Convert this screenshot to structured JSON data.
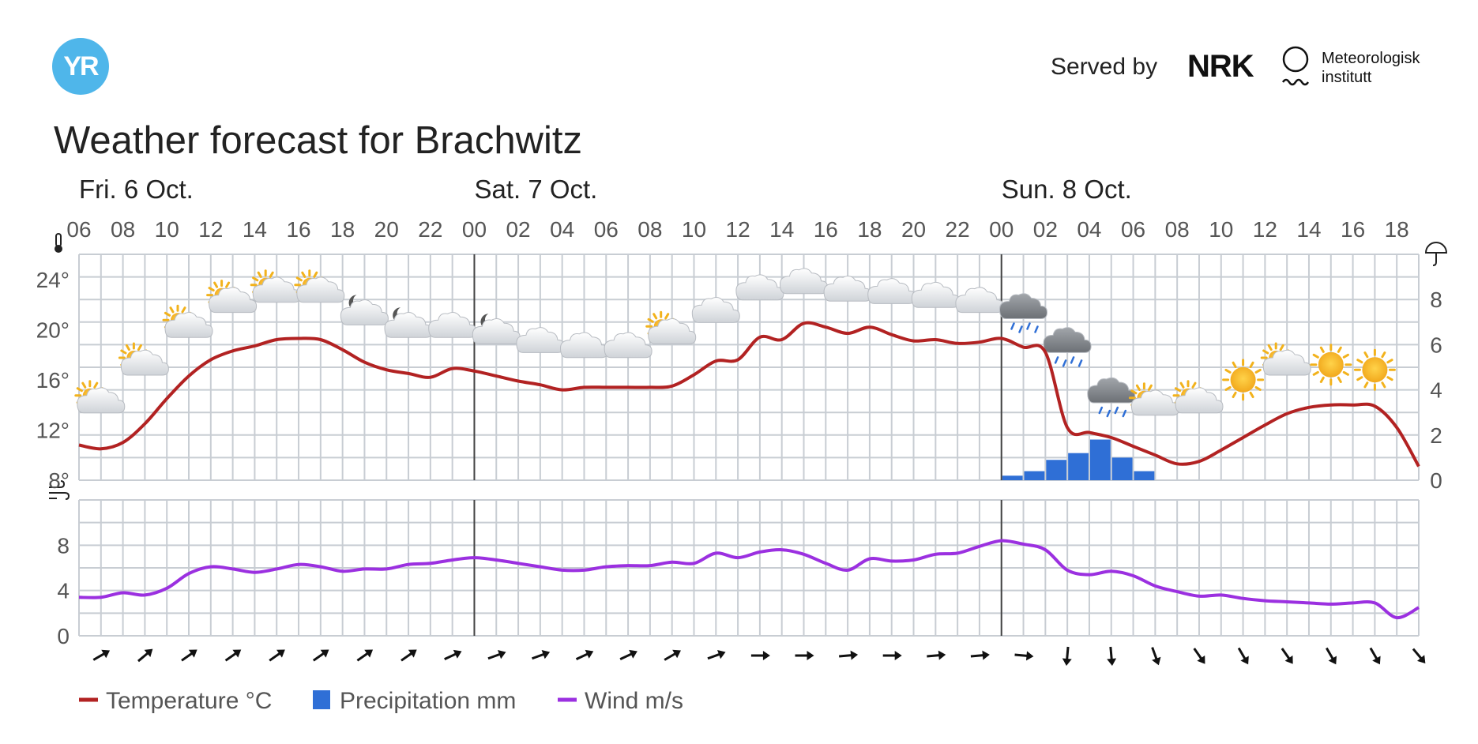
{
  "header": {
    "logo_text": "YR",
    "served_by": "Served by",
    "nrk": "NRK",
    "met_line1": "Meteorologisk",
    "met_line2": "institutt",
    "title": "Weather forecast for Brachwitz"
  },
  "chart_data": {
    "type": "line",
    "days": [
      {
        "label": "Fri. 6 Oct.",
        "hour": 6
      },
      {
        "label": "Sat. 7 Oct.",
        "hour": 24
      },
      {
        "label": "Sun. 8 Oct.",
        "hour": 48
      }
    ],
    "hour_labels": [
      "06",
      "08",
      "10",
      "12",
      "14",
      "16",
      "18",
      "20",
      "22",
      "00",
      "02",
      "04",
      "06",
      "08",
      "10",
      "12",
      "14",
      "16",
      "18",
      "20",
      "22",
      "00",
      "02",
      "04",
      "06",
      "08",
      "10",
      "12",
      "14",
      "16",
      "18"
    ],
    "x_range_hours": [
      6,
      67
    ],
    "temperature": {
      "name": "Temperature °C",
      "ylim": [
        8,
        26
      ],
      "yticks": [
        "8°",
        "12°",
        "16°",
        "20°",
        "24°"
      ],
      "x": [
        6,
        7,
        8,
        9,
        10,
        11,
        12,
        13,
        14,
        15,
        16,
        17,
        18,
        19,
        20,
        21,
        22,
        23,
        24,
        25,
        26,
        27,
        28,
        29,
        30,
        31,
        32,
        33,
        34,
        35,
        36,
        37,
        38,
        39,
        40,
        41,
        42,
        43,
        44,
        45,
        46,
        47,
        48,
        49,
        50,
        51,
        52,
        53,
        54,
        55,
        56,
        57,
        58,
        59,
        60,
        61,
        62,
        63,
        64,
        65,
        66,
        67
      ],
      "values": [
        10.8,
        10.5,
        11,
        12.5,
        14.5,
        16.3,
        17.6,
        18.3,
        18.7,
        19.2,
        19.3,
        19.2,
        18.4,
        17.4,
        16.8,
        16.5,
        16.2,
        16.9,
        16.7,
        16.3,
        15.9,
        15.6,
        15.2,
        15.4,
        15.4,
        15.4,
        15.4,
        15.5,
        16.4,
        17.5,
        17.6,
        19.4,
        19.2,
        20.5,
        20.2,
        19.7,
        20.2,
        19.6,
        19.1,
        19.2,
        18.9,
        19,
        19.3,
        18.6,
        18.2,
        12.2,
        11.8,
        11.4,
        10.7,
        10,
        9.3,
        9.5,
        10.4,
        11.4,
        12.4,
        13.3,
        13.8,
        14,
        14,
        13.9,
        12.2,
        9.1
      ]
    },
    "precipitation": {
      "name": "Precipitation mm",
      "ylim": [
        0,
        10
      ],
      "yticks": [
        "0",
        "2",
        "4",
        "6",
        "8"
      ],
      "x": [
        48,
        49,
        50,
        51,
        52,
        53,
        54
      ],
      "values": [
        0.2,
        0.4,
        0.9,
        1.2,
        1.8,
        1.0,
        0.4
      ]
    },
    "wind": {
      "name": "Wind m/s",
      "ylim": [
        0,
        12
      ],
      "yticks": [
        "0",
        "4",
        "8"
      ],
      "x": [
        6,
        7,
        8,
        9,
        10,
        11,
        12,
        13,
        14,
        15,
        16,
        17,
        18,
        19,
        20,
        21,
        22,
        23,
        24,
        25,
        26,
        27,
        28,
        29,
        30,
        31,
        32,
        33,
        34,
        35,
        36,
        37,
        38,
        39,
        40,
        41,
        42,
        43,
        44,
        45,
        46,
        47,
        48,
        49,
        50,
        51,
        52,
        53,
        54,
        55,
        56,
        57,
        58,
        59,
        60,
        61,
        62,
        63,
        64,
        65,
        66,
        67
      ],
      "values": [
        3.4,
        3.4,
        3.8,
        3.6,
        4.2,
        5.5,
        6.1,
        5.9,
        5.6,
        5.9,
        6.3,
        6.1,
        5.7,
        5.9,
        5.9,
        6.3,
        6.4,
        6.7,
        6.9,
        6.7,
        6.4,
        6.1,
        5.8,
        5.8,
        6.1,
        6.2,
        6.2,
        6.5,
        6.4,
        7.3,
        6.9,
        7.4,
        7.6,
        7.2,
        6.4,
        5.8,
        6.8,
        6.6,
        6.7,
        7.2,
        7.3,
        7.9,
        8.4,
        8.1,
        7.6,
        5.8,
        5.4,
        5.7,
        5.3,
        4.4,
        3.9,
        3.5,
        3.6,
        3.3,
        3.1,
        3,
        2.9,
        2.8,
        2.9,
        2.9,
        1.6,
        2.5
      ]
    },
    "weather_symbols": [
      {
        "hour": 7,
        "temp": 14,
        "icon": "partly-cloudy-day-icon"
      },
      {
        "hour": 9,
        "temp": 17,
        "icon": "partly-cloudy-day-icon"
      },
      {
        "hour": 11,
        "temp": 20,
        "icon": "partly-cloudy-day-icon"
      },
      {
        "hour": 13,
        "temp": 22,
        "icon": "partly-cloudy-day-icon"
      },
      {
        "hour": 15,
        "temp": 22.8,
        "icon": "partly-cloudy-day-icon"
      },
      {
        "hour": 17,
        "temp": 22.8,
        "icon": "partly-cloudy-day-icon"
      },
      {
        "hour": 19,
        "temp": 21,
        "icon": "partly-cloudy-night-icon"
      },
      {
        "hour": 21,
        "temp": 20,
        "icon": "partly-cloudy-night-icon"
      },
      {
        "hour": 23,
        "temp": 20,
        "icon": "cloud-icon"
      },
      {
        "hour": 25,
        "temp": 19.5,
        "icon": "partly-cloudy-night-icon"
      },
      {
        "hour": 27,
        "temp": 18.8,
        "icon": "cloud-icon"
      },
      {
        "hour": 29,
        "temp": 18.4,
        "icon": "cloud-icon"
      },
      {
        "hour": 31,
        "temp": 18.4,
        "icon": "cloud-icon"
      },
      {
        "hour": 33,
        "temp": 19.5,
        "icon": "partly-cloudy-day-icon"
      },
      {
        "hour": 35,
        "temp": 21.2,
        "icon": "cloud-icon"
      },
      {
        "hour": 37,
        "temp": 23,
        "icon": "cloud-icon"
      },
      {
        "hour": 39,
        "temp": 23.5,
        "icon": "cloud-icon"
      },
      {
        "hour": 41,
        "temp": 22.9,
        "icon": "cloud-icon"
      },
      {
        "hour": 43,
        "temp": 22.7,
        "icon": "cloud-icon"
      },
      {
        "hour": 45,
        "temp": 22.4,
        "icon": "cloud-icon"
      },
      {
        "hour": 47,
        "temp": 22,
        "icon": "cloud-icon"
      },
      {
        "hour": 49,
        "temp": 21.5,
        "icon": "rain-cloud-icon"
      },
      {
        "hour": 51,
        "temp": 18.8,
        "icon": "rain-cloud-icon"
      },
      {
        "hour": 53,
        "temp": 14.8,
        "icon": "rain-cloud-icon"
      },
      {
        "hour": 55,
        "temp": 13.8,
        "icon": "partly-cloudy-day-icon"
      },
      {
        "hour": 57,
        "temp": 14,
        "icon": "partly-cloudy-day-icon"
      },
      {
        "hour": 59,
        "temp": 16,
        "icon": "sun-icon"
      },
      {
        "hour": 61,
        "temp": 17,
        "icon": "partly-cloudy-day-icon"
      },
      {
        "hour": 63,
        "temp": 17.2,
        "icon": "sun-icon"
      },
      {
        "hour": 65,
        "temp": 16.8,
        "icon": "sun-icon"
      }
    ],
    "wind_directions": [
      {
        "hour": 7,
        "deg": 60
      },
      {
        "hour": 9,
        "deg": 50
      },
      {
        "hour": 11,
        "deg": 55
      },
      {
        "hour": 13,
        "deg": 55
      },
      {
        "hour": 15,
        "deg": 55
      },
      {
        "hour": 17,
        "deg": 55
      },
      {
        "hour": 19,
        "deg": 55
      },
      {
        "hour": 21,
        "deg": 55
      },
      {
        "hour": 23,
        "deg": 65
      },
      {
        "hour": 25,
        "deg": 70
      },
      {
        "hour": 27,
        "deg": 70
      },
      {
        "hour": 29,
        "deg": 65
      },
      {
        "hour": 31,
        "deg": 65
      },
      {
        "hour": 33,
        "deg": 60
      },
      {
        "hour": 35,
        "deg": 70
      },
      {
        "hour": 37,
        "deg": 90
      },
      {
        "hour": 39,
        "deg": 90
      },
      {
        "hour": 41,
        "deg": 85
      },
      {
        "hour": 43,
        "deg": 90
      },
      {
        "hour": 45,
        "deg": 85
      },
      {
        "hour": 47,
        "deg": 85
      },
      {
        "hour": 49,
        "deg": 95
      },
      {
        "hour": 51,
        "deg": 185
      },
      {
        "hour": 53,
        "deg": 175
      },
      {
        "hour": 55,
        "deg": 160
      },
      {
        "hour": 57,
        "deg": 145
      },
      {
        "hour": 59,
        "deg": 150
      },
      {
        "hour": 61,
        "deg": 145
      },
      {
        "hour": 63,
        "deg": 150
      },
      {
        "hour": 65,
        "deg": 150
      },
      {
        "hour": 67,
        "deg": 140
      }
    ],
    "legend": [
      {
        "label": "Temperature °C",
        "color": "#b22222"
      },
      {
        "label": "Precipitation mm",
        "color": "#2f6fd6"
      },
      {
        "label": "Wind m/s",
        "color": "#9b30e0"
      }
    ],
    "colors": {
      "temperature": "#b22222",
      "precipitation": "#2f6fd6",
      "wind": "#9b30e0",
      "grid": "#c8cdd3",
      "day_line": "#444444"
    }
  }
}
